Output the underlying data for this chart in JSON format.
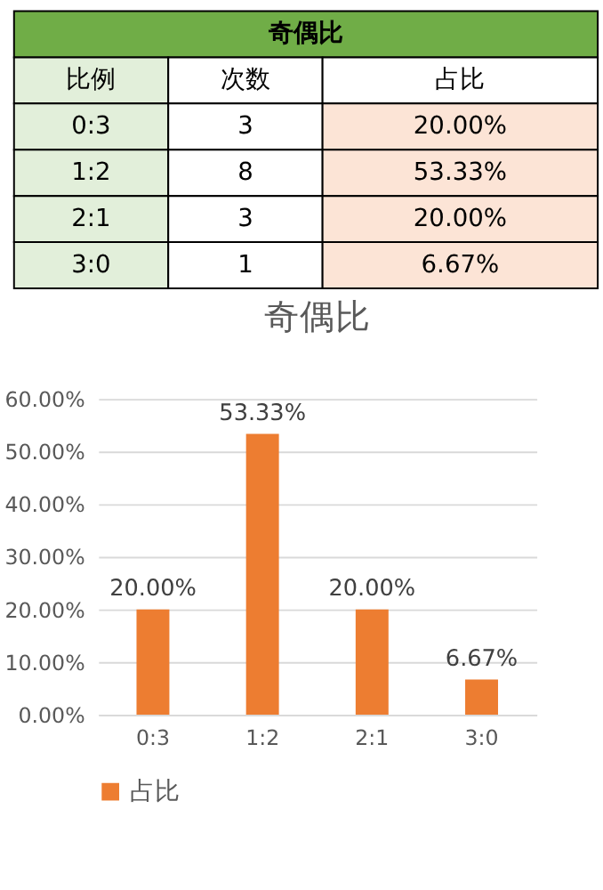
{
  "chart_data": [
    {
      "type": "other",
      "title": "奇偶比",
      "categories": [
        "比例",
        "次数",
        "占比"
      ],
      "annotations": [
        "0:3",
        "3",
        "20.00%",
        "1:2",
        "8",
        "53.33%",
        "2:1",
        "3",
        "20.00%",
        "3:0",
        "1",
        "6.67%"
      ]
    },
    {
      "type": "bar",
      "title": "奇偶比",
      "categories": [
        "0:3",
        "1:2",
        "2:1",
        "3:0"
      ],
      "series": [
        {
          "name": "占比",
          "color": "#ed7d31",
          "values": [
            20,
            53.33,
            20,
            6.67
          ],
          "value_labels": [
            "20.00%",
            "53.33%",
            "20.00%",
            "6.67%"
          ]
        }
      ],
      "ylim": [
        0,
        60
      ],
      "yticks": [
        {
          "value": 0,
          "label": "0.00%"
        },
        {
          "value": 10,
          "label": "10.00%"
        },
        {
          "value": 20,
          "label": "20.00%"
        },
        {
          "value": 30,
          "label": "30.00%"
        },
        {
          "value": 40,
          "label": "40.00%"
        },
        {
          "value": 50,
          "label": "50.00%"
        },
        {
          "value": 60,
          "label": "60.00%"
        }
      ],
      "grid": "y",
      "legend": "bottom"
    }
  ]
}
